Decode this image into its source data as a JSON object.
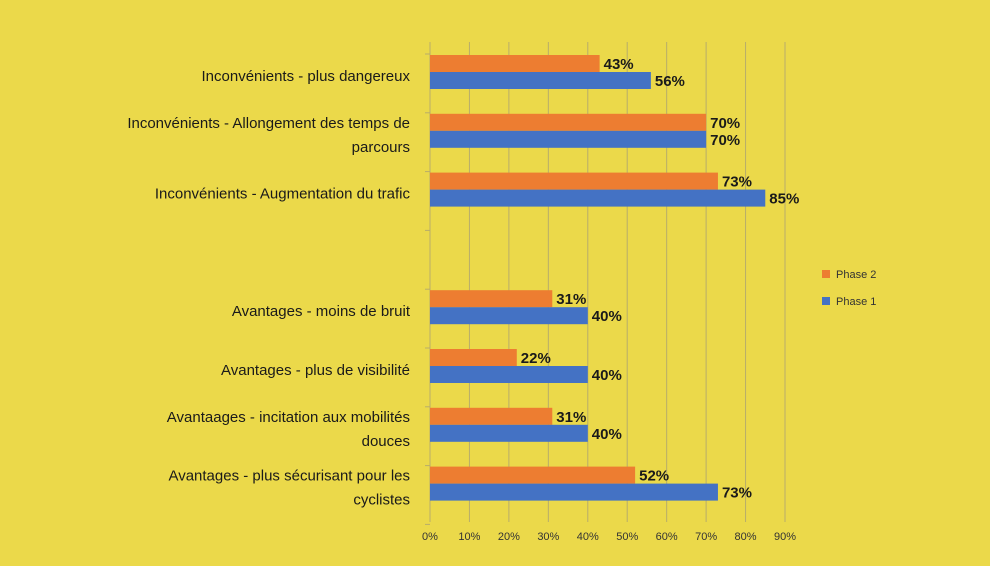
{
  "chart_data": {
    "type": "bar",
    "orientation": "horizontal",
    "categories": [
      "Inconvénients - plus dangereux",
      "Inconvénients - Allongement des temps de parcours",
      "Inconvénients - Augmentation du trafic",
      "",
      "Avantages - moins de bruit",
      "Avantages - plus de visibilité",
      "Avantaages - incitation aux mobilités douces",
      "Avantages - plus sécurisant pour les cyclistes"
    ],
    "category_lines": [
      [
        "Inconvénients - plus dangereux"
      ],
      [
        "Inconvénients - Allongement des temps de",
        "parcours"
      ],
      [
        "Inconvénients - Augmentation du trafic"
      ],
      [],
      [
        "Avantages - moins de bruit"
      ],
      [
        "Avantages - plus de visibilité"
      ],
      [
        "Avantaages - incitation aux mobilités",
        "douces"
      ],
      [
        "Avantages - plus sécurisant pour les",
        "cyclistes"
      ]
    ],
    "series": [
      {
        "name": "Phase 2",
        "color": "#ed7d31",
        "values": [
          43,
          70,
          73,
          null,
          31,
          22,
          31,
          52
        ],
        "labels": [
          "43%",
          "70%",
          "73%",
          "",
          "31%",
          "22%",
          "31%",
          "52%"
        ]
      },
      {
        "name": "Phase 1",
        "color": "#4472c4",
        "values": [
          56,
          70,
          85,
          null,
          40,
          40,
          40,
          73
        ],
        "labels": [
          "56%",
          "70%",
          "85%",
          "",
          "40%",
          "40%",
          "40%",
          "73%"
        ]
      }
    ],
    "xlim": [
      0,
      90
    ],
    "xticks": [
      0,
      10,
      20,
      30,
      40,
      50,
      60,
      70,
      80,
      90
    ],
    "xtick_labels": [
      "0%",
      "10%",
      "20%",
      "30%",
      "40%",
      "50%",
      "60%",
      "70%",
      "80%",
      "90%"
    ],
    "grid": "vertical",
    "grid_color": "#b8ad6a",
    "legend_position": "right",
    "title": "",
    "xlabel": "",
    "ylabel": ""
  }
}
